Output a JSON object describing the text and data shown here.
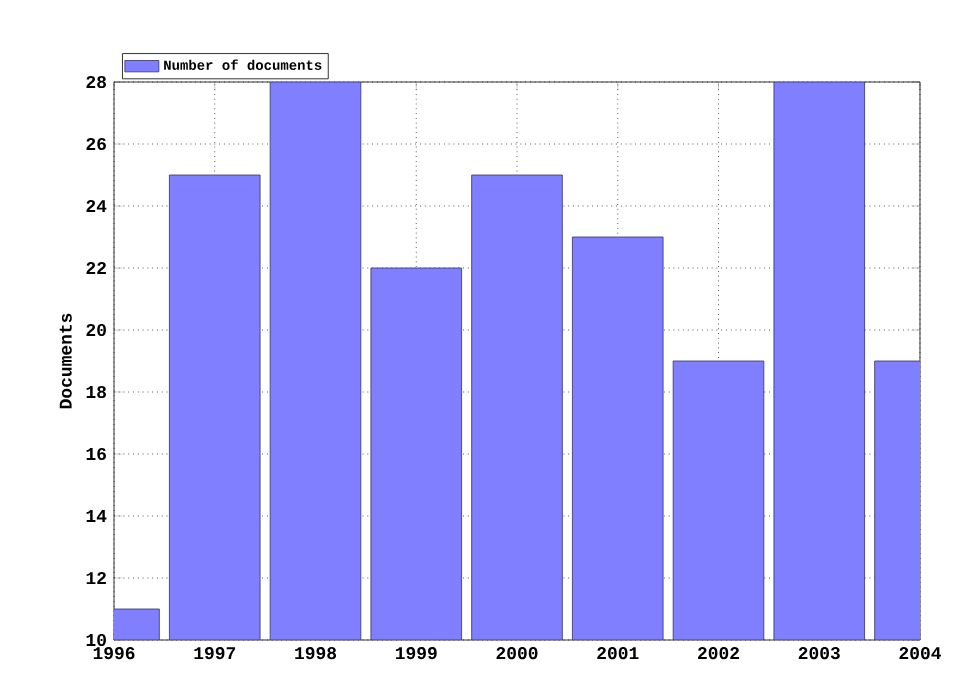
{
  "chart_data": {
    "type": "bar",
    "ylabel": "Documents",
    "x": [
      1996,
      1997,
      1998,
      1999,
      2000,
      2001,
      2002,
      2003,
      2004
    ],
    "series": [
      {
        "name": "Number of documents",
        "color": "#7f7fff",
        "values": [
          11,
          25,
          28,
          22,
          25,
          23,
          19,
          28,
          19
        ]
      }
    ],
    "xlim": [
      1996,
      2004
    ],
    "xticks": [
      1996,
      1997,
      1998,
      1999,
      2000,
      2001,
      2002,
      2003,
      2004
    ],
    "ylim": [
      10,
      28
    ],
    "yticks": [
      10,
      12,
      14,
      16,
      18,
      20,
      22,
      24,
      26,
      28
    ],
    "grid": true,
    "legend": "top left"
  }
}
